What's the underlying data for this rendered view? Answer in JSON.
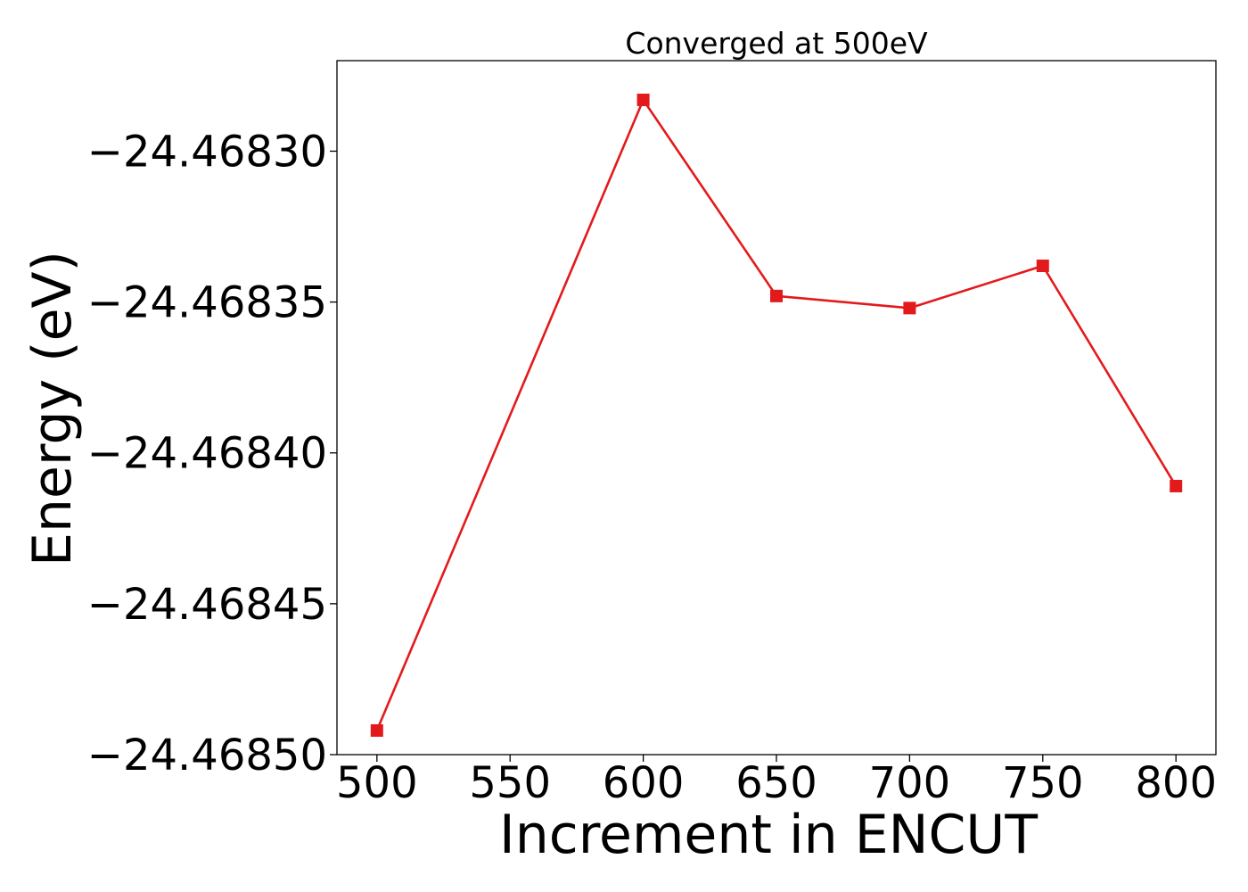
{
  "chart_data": {
    "type": "line",
    "title": "Converged at 500eV",
    "xlabel": "Increment in ENCUT",
    "ylabel": "Energy (eV)",
    "x": [
      500,
      600,
      650,
      700,
      750,
      800
    ],
    "series": [
      {
        "values": [
          -24.468492,
          -24.468283,
          -24.468348,
          -24.468352,
          -24.468338,
          -24.468411
        ],
        "color": "#e31a1c",
        "marker": "square"
      }
    ],
    "x_ticks": [
      500,
      550,
      600,
      650,
      700,
      750,
      800
    ],
    "x_tick_labels": [
      "500",
      "550",
      "600",
      "650",
      "700",
      "750",
      "800"
    ],
    "y_ticks": [
      -24.4683,
      -24.46835,
      -24.4684,
      -24.46845,
      -24.4685
    ],
    "y_tick_labels": [
      "−24.46830",
      "−24.46835",
      "−24.46840",
      "−24.46845",
      "−24.46850"
    ],
    "xlim": [
      485,
      815
    ],
    "ylim": [
      -24.4685,
      -24.46827
    ],
    "grid": false,
    "legend": "none"
  }
}
